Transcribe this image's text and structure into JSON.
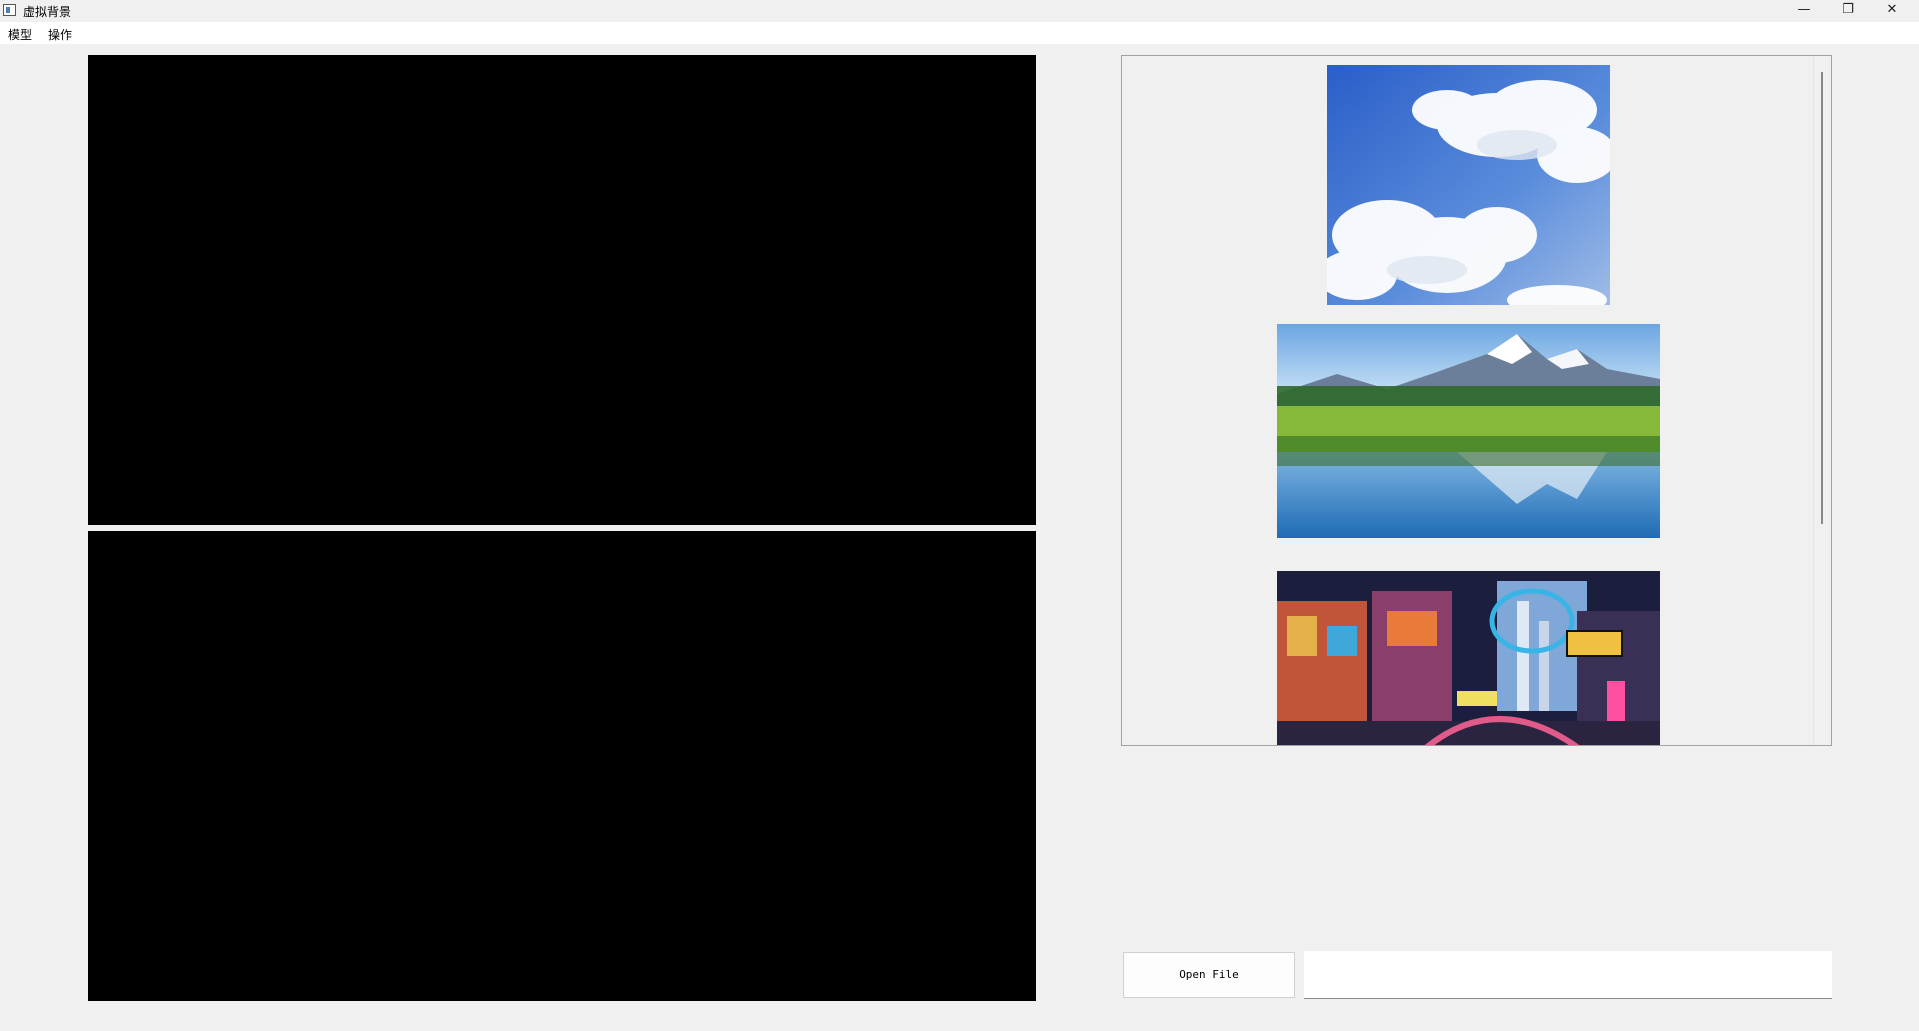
{
  "window": {
    "title": "虚拟背景",
    "icons": [
      "app-icon",
      "minimize-icon",
      "restore-icon",
      "close-icon"
    ]
  },
  "menu": {
    "items": [
      {
        "label": "模型"
      },
      {
        "label": "操作"
      }
    ]
  },
  "gallery": {
    "items": [
      {
        "name": "sky-clouds-image",
        "colors": [
          "#2f64c8",
          "#6f9ee4",
          "#ffffff"
        ]
      },
      {
        "name": "mountain-lake-image",
        "colors": [
          "#8fc2ec",
          "#5f9a2e",
          "#2f74b8"
        ]
      },
      {
        "name": "cyber-city-image",
        "colors": [
          "#1a1d3a",
          "#d45a3a",
          "#39b4e6"
        ]
      }
    ]
  },
  "controls": {
    "open_file_label": "Open File",
    "path_value": ""
  }
}
